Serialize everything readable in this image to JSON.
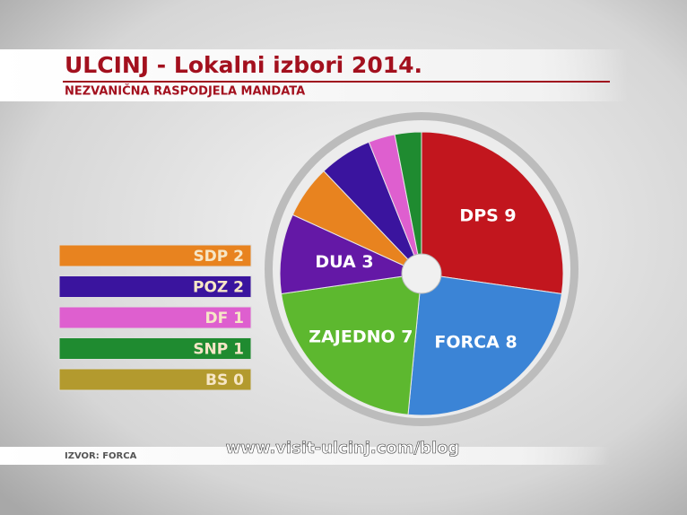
{
  "chart_data": {
    "type": "pie",
    "title": "ULCINJ - Lokalni izbori 2014.",
    "subtitle": "NEZVANIČNA RASPODJELA MANDATA",
    "source": "IZVOR: FORCA",
    "watermark": "www.visit-ulcinj.com/blog",
    "values": [
      9,
      8,
      7,
      3,
      2,
      2,
      1,
      1,
      0
    ],
    "value_labels": [
      "DPS 9",
      "FORCA 8",
      "ZAJEDNO 7",
      "DUA 3",
      "SDP 2",
      "POZ 2",
      "DF 1",
      "SNP 1",
      "BS 0"
    ],
    "colors": [
      "#c2161e",
      "#3b84d6",
      "#5db82f",
      "#6418a6",
      "#e8831f",
      "#3a149e",
      "#de5fcf",
      "#1f8b30",
      "#b39a2e"
    ]
  }
}
